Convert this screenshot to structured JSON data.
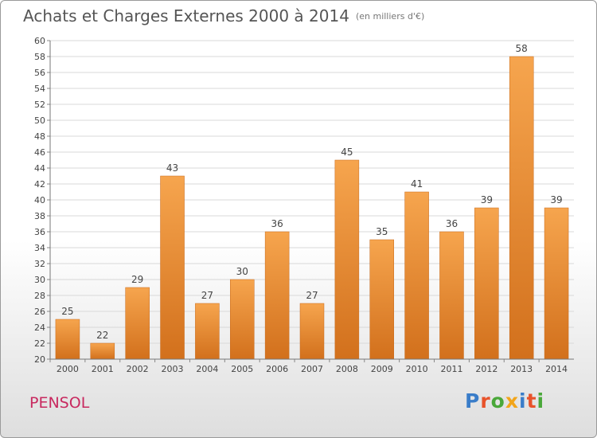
{
  "title": "Achats et Charges Externes 2000 à 2014",
  "unit": "(en milliers d'€)",
  "commune": "PENSOL",
  "logo": {
    "text": "Proxiti",
    "colors": [
      "#3a7dc9",
      "#e8532b",
      "#4aa83a",
      "#f2a51a",
      "#3a7dc9",
      "#e8532b",
      "#4aa83a"
    ]
  },
  "colors": {
    "bar_top": "#f6a54e",
    "bar_bottom": "#d2701c",
    "grid": "#d8d8d8",
    "label": "#444444"
  },
  "chart_data": {
    "type": "bar",
    "categories": [
      "2000",
      "2001",
      "2002",
      "2003",
      "2004",
      "2005",
      "2006",
      "2007",
      "2008",
      "2009",
      "2010",
      "2011",
      "2012",
      "2013",
      "2014"
    ],
    "values": [
      25,
      22,
      29,
      43,
      27,
      30,
      36,
      27,
      45,
      35,
      41,
      36,
      39,
      58,
      39
    ],
    "ylim": [
      20,
      60
    ],
    "ytick_step": 2,
    "grid": true,
    "xlabel": "",
    "ylabel": ""
  }
}
